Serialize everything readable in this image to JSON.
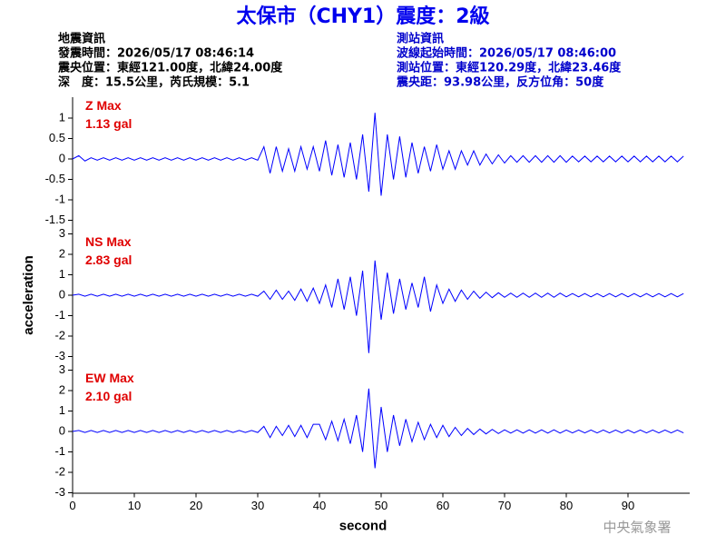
{
  "header": {
    "title": "太保市（CHY1）震度：2級",
    "event_info": [
      "地震資訊",
      "發震時間：2026/05/17 08:46:14",
      "震央位置：東經121.00度，北緯24.00度",
      "深　度：15.5公里，芮氏規模：5.1"
    ],
    "station_info": [
      "測站資訊",
      "波線起始時間：2026/05/17 08:46:00",
      "測站位置：東經120.29度，北緯23.46度",
      "震央距：93.98公里，反方位角：50度"
    ],
    "footer": "中央氣象署"
  },
  "chart_data": [
    {
      "type": "line",
      "color": "#0000ff",
      "annotations": [
        "Z Max",
        "1.13 gal"
      ],
      "xlim": [
        0,
        100
      ],
      "ylim": [
        -1.5,
        1.5
      ],
      "yticks": [
        -1.5,
        -1,
        -0.5,
        0,
        0.5,
        1
      ],
      "x": [
        0,
        1,
        2,
        3,
        4,
        5,
        6,
        7,
        8,
        9,
        10,
        11,
        12,
        13,
        14,
        15,
        16,
        17,
        18,
        19,
        20,
        21,
        22,
        23,
        24,
        25,
        26,
        27,
        28,
        29,
        30,
        31,
        32,
        33,
        34,
        35,
        36,
        37,
        38,
        39,
        40,
        41,
        42,
        43,
        44,
        45,
        46,
        47,
        48,
        49,
        50,
        51,
        52,
        53,
        54,
        55,
        56,
        57,
        58,
        59,
        60,
        61,
        62,
        63,
        64,
        65,
        66,
        67,
        68,
        69,
        70,
        71,
        72,
        73,
        74,
        75,
        76,
        77,
        78,
        79,
        80,
        81,
        82,
        83,
        84,
        85,
        86,
        87,
        88,
        89,
        90,
        91,
        92,
        93,
        94,
        95,
        96,
        97,
        98,
        99
      ],
      "values": [
        0,
        0.08,
        -0.05,
        0.03,
        -0.03,
        0.03,
        -0.03,
        0.03,
        -0.03,
        0.03,
        -0.03,
        0.03,
        -0.03,
        0.03,
        -0.03,
        0.03,
        -0.03,
        0.03,
        -0.03,
        0.03,
        -0.03,
        0.03,
        -0.03,
        0.03,
        -0.03,
        0.03,
        -0.03,
        0.03,
        -0.03,
        0.03,
        -0.03,
        0.3,
        -0.35,
        0.3,
        -0.3,
        0.25,
        -0.3,
        0.3,
        -0.25,
        0.3,
        -0.3,
        0.45,
        -0.4,
        0.35,
        -0.45,
        0.4,
        -0.5,
        0.6,
        -0.8,
        1.13,
        -0.9,
        0.6,
        -0.5,
        0.55,
        -0.45,
        0.4,
        -0.35,
        0.3,
        -0.3,
        0.35,
        -0.25,
        0.2,
        -0.25,
        0.2,
        -0.15,
        0.2,
        -0.15,
        0.12,
        -0.12,
        0.1,
        -0.1,
        0.08,
        -0.08,
        0.08,
        -0.08,
        0.08,
        -0.08,
        0.08,
        -0.08,
        0.08,
        -0.08,
        0.07,
        -0.07,
        0.07,
        -0.07,
        0.07,
        -0.07,
        0.07,
        -0.07,
        0.07,
        -0.07,
        0.07,
        -0.07,
        0.07,
        -0.07,
        0.07,
        -0.07,
        0.07,
        -0.07,
        0.07
      ]
    },
    {
      "type": "line",
      "color": "#0000ff",
      "annotations": [
        "NS Max",
        "2.83 gal"
      ],
      "ylabel": "acceleration",
      "xlim": [
        0,
        100
      ],
      "ylim": [
        -3,
        3
      ],
      "yticks": [
        -3,
        -2,
        -1,
        0,
        1,
        2,
        3
      ],
      "x": [
        0,
        1,
        2,
        3,
        4,
        5,
        6,
        7,
        8,
        9,
        10,
        11,
        12,
        13,
        14,
        15,
        16,
        17,
        18,
        19,
        20,
        21,
        22,
        23,
        24,
        25,
        26,
        27,
        28,
        29,
        30,
        31,
        32,
        33,
        34,
        35,
        36,
        37,
        38,
        39,
        40,
        41,
        42,
        43,
        44,
        45,
        46,
        47,
        48,
        49,
        50,
        51,
        52,
        53,
        54,
        55,
        56,
        57,
        58,
        59,
        60,
        61,
        62,
        63,
        64,
        65,
        66,
        67,
        68,
        69,
        70,
        71,
        72,
        73,
        74,
        75,
        76,
        77,
        78,
        79,
        80,
        81,
        82,
        83,
        84,
        85,
        86,
        87,
        88,
        89,
        90,
        91,
        92,
        93,
        94,
        95,
        96,
        97,
        98,
        99
      ],
      "values": [
        0,
        0.05,
        -0.05,
        0.05,
        -0.05,
        0.05,
        -0.05,
        0.05,
        -0.05,
        0.05,
        -0.05,
        0.05,
        -0.05,
        0.05,
        -0.05,
        0.05,
        -0.05,
        0.05,
        -0.05,
        0.05,
        -0.05,
        0.05,
        -0.05,
        0.05,
        -0.05,
        0.05,
        -0.05,
        0.05,
        -0.05,
        0.05,
        -0.05,
        0.2,
        -0.2,
        0.25,
        -0.2,
        0.2,
        -0.25,
        0.3,
        -0.3,
        0.35,
        -0.4,
        0.5,
        -0.6,
        0.8,
        -0.7,
        0.9,
        -1.0,
        1.2,
        -2.83,
        1.7,
        -1.2,
        1.1,
        -0.9,
        0.8,
        -0.7,
        0.6,
        -0.6,
        0.9,
        -0.8,
        0.5,
        -0.4,
        0.3,
        -0.3,
        0.25,
        -0.2,
        0.2,
        -0.15,
        0.15,
        -0.12,
        0.12,
        -0.1,
        0.1,
        -0.1,
        0.1,
        -0.1,
        0.1,
        -0.1,
        0.1,
        -0.1,
        0.1,
        -0.08,
        0.08,
        -0.08,
        0.08,
        -0.08,
        0.08,
        -0.08,
        0.08,
        -0.08,
        0.08,
        -0.08,
        0.08,
        -0.08,
        0.08,
        -0.08,
        0.08,
        -0.08,
        0.08,
        -0.08,
        0.08
      ]
    },
    {
      "type": "line",
      "color": "#0000ff",
      "annotations": [
        "EW Max",
        "2.10 gal"
      ],
      "xlabel": "second",
      "xlim": [
        0,
        100
      ],
      "xticks": [
        0,
        10,
        20,
        30,
        40,
        50,
        60,
        70,
        80,
        90
      ],
      "ylim": [
        -3,
        3
      ],
      "yticks": [
        -3,
        -2,
        -1,
        0,
        1,
        2,
        3
      ],
      "x": [
        0,
        1,
        2,
        3,
        4,
        5,
        6,
        7,
        8,
        9,
        10,
        11,
        12,
        13,
        14,
        15,
        16,
        17,
        18,
        19,
        20,
        21,
        22,
        23,
        24,
        25,
        26,
        27,
        28,
        29,
        30,
        31,
        32,
        33,
        34,
        35,
        36,
        37,
        38,
        39,
        40,
        41,
        42,
        43,
        44,
        45,
        46,
        47,
        48,
        49,
        50,
        51,
        52,
        53,
        54,
        55,
        56,
        57,
        58,
        59,
        60,
        61,
        62,
        63,
        64,
        65,
        66,
        67,
        68,
        69,
        70,
        71,
        72,
        73,
        74,
        75,
        76,
        77,
        78,
        79,
        80,
        81,
        82,
        83,
        84,
        85,
        86,
        87,
        88,
        89,
        90,
        91,
        92,
        93,
        94,
        95,
        96,
        97,
        98,
        99
      ],
      "values": [
        0,
        0.05,
        -0.05,
        0.05,
        -0.05,
        0.05,
        -0.05,
        0.05,
        -0.05,
        0.05,
        -0.05,
        0.05,
        -0.05,
        0.05,
        -0.05,
        0.05,
        -0.05,
        0.05,
        -0.05,
        0.05,
        -0.05,
        0.05,
        -0.05,
        0.05,
        -0.05,
        0.05,
        -0.05,
        0.05,
        -0.05,
        0.05,
        -0.05,
        0.25,
        -0.3,
        0.25,
        -0.2,
        0.3,
        -0.25,
        0.3,
        -0.3,
        0.35,
        0.35,
        -0.4,
        0.5,
        -0.45,
        0.6,
        -0.6,
        0.8,
        -1.0,
        2.1,
        -1.8,
        1.2,
        -1.0,
        0.8,
        -0.7,
        0.6,
        -0.5,
        0.45,
        -0.4,
        0.35,
        -0.3,
        0.3,
        -0.25,
        0.2,
        -0.2,
        0.15,
        -0.15,
        0.12,
        -0.12,
        0.1,
        -0.1,
        0.08,
        -0.08,
        0.08,
        -0.08,
        0.08,
        -0.08,
        0.08,
        -0.08,
        0.08,
        -0.08,
        0.07,
        -0.07,
        0.07,
        -0.07,
        0.07,
        -0.07,
        0.07,
        -0.07,
        0.07,
        -0.07,
        0.07,
        -0.07,
        0.07,
        -0.07,
        0.07,
        -0.07,
        0.07,
        -0.07,
        0.07,
        -0.07
      ]
    }
  ]
}
